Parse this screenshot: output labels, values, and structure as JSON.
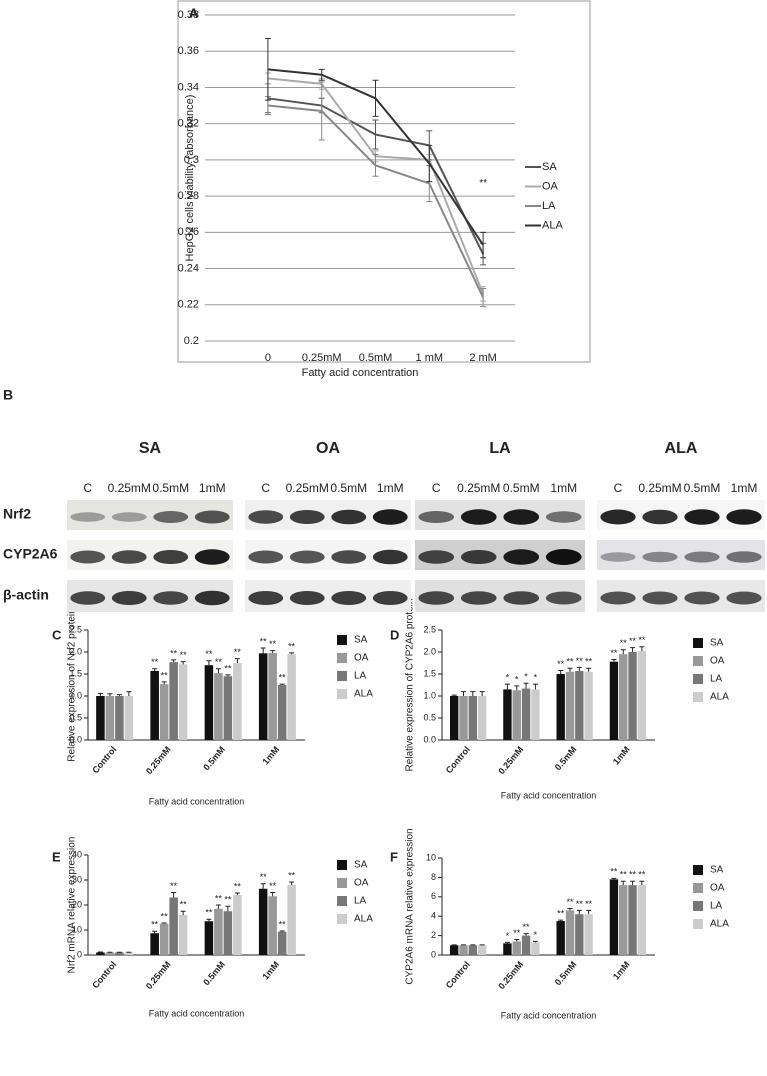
{
  "chart_data": [
    {
      "type": "line",
      "panel": "A",
      "ylabel": "HepG2 cells viability (absorbance)",
      "xlabel": "Fatty acid concentration",
      "categories": [
        "0",
        "0.25mM",
        "0.5mM",
        "1 mM",
        "2 mM"
      ],
      "ylim": [
        0.2,
        0.38
      ],
      "yticks": [
        0.2,
        0.22,
        0.24,
        0.26,
        0.28,
        0.3,
        0.32,
        0.34,
        0.36,
        0.38
      ],
      "grid": true,
      "series": [
        {
          "name": "SA",
          "color": "#555555",
          "values": [
            0.334,
            0.33,
            0.314,
            0.308,
            0.248
          ],
          "errors": [
            0.008,
            0.004,
            0.008,
            0.008,
            0.006
          ]
        },
        {
          "name": "OA",
          "color": "#aaaaaa",
          "values": [
            0.345,
            0.342,
            0.302,
            0.3,
            0.226
          ],
          "errors": [
            0.003,
            0.003,
            0.003,
            0.003,
            0.004
          ]
        },
        {
          "name": "LA",
          "color": "#888888",
          "values": [
            0.33,
            0.327,
            0.297,
            0.287,
            0.224
          ],
          "errors": [
            0.005,
            0.016,
            0.006,
            0.01,
            0.005
          ]
        },
        {
          "name": "ALA",
          "color": "#333333",
          "values": [
            0.35,
            0.347,
            0.334,
            0.298,
            0.253
          ],
          "errors": [
            0.017,
            0.003,
            0.01,
            0.01,
            0.007
          ]
        }
      ],
      "annotations": [
        {
          "text": "**",
          "x": 4,
          "y": 0.287
        }
      ]
    },
    {
      "type": "bar",
      "panel": "C",
      "ylabel": "Relative expression of Nrf2 protein",
      "xlabel": "Fatty acid concentration",
      "categories": [
        "Control",
        "0.25mM",
        "0.5mM",
        "1mM"
      ],
      "ylim": [
        0,
        2.5
      ],
      "yticks": [
        {
          "value": 0,
          "label": "0.0"
        },
        0.5,
        {
          "value": 1,
          "label": "1.0"
        },
        1.5,
        {
          "value": 2,
          "label": "2.0"
        },
        2.5
      ],
      "series": [
        {
          "name": "SA",
          "color": "#111111",
          "values": [
            1.0,
            1.57,
            1.7,
            1.97
          ],
          "errors": [
            0.06,
            0.05,
            0.1,
            0.12
          ],
          "significance": [
            null,
            "**",
            "**",
            "**"
          ]
        },
        {
          "name": "OA",
          "color": "#999999",
          "values": [
            1.0,
            1.27,
            1.52,
            1.98
          ],
          "errors": [
            0.05,
            0.05,
            0.1,
            0.05
          ],
          "significance": [
            null,
            "**",
            "**",
            "**"
          ]
        },
        {
          "name": "LA",
          "color": "#777777",
          "values": [
            1.0,
            1.77,
            1.45,
            1.25
          ],
          "errors": [
            0.03,
            0.05,
            0.03,
            0.02
          ],
          "significance": [
            null,
            "**",
            "**",
            "**"
          ]
        },
        {
          "name": "ALA",
          "color": "#cccccc",
          "values": [
            1.0,
            1.72,
            1.75,
            1.95
          ],
          "errors": [
            0.1,
            0.06,
            0.1,
            0.03
          ],
          "significance": [
            null,
            "**",
            "**",
            "**"
          ]
        }
      ]
    },
    {
      "type": "bar",
      "panel": "D",
      "ylabel": "Relative expression of CYP2A6 protein",
      "xlabel": "Fatty acid concentration",
      "categories": [
        "Control",
        "0.25mM",
        "0.5mM",
        "1mM"
      ],
      "ylim": [
        0,
        2.5
      ],
      "yticks": [
        {
          "value": 0,
          "label": "0.0"
        },
        0.5,
        {
          "value": 1,
          "label": "1.0"
        },
        1.5,
        {
          "value": 2,
          "label": "2.0"
        },
        2.5
      ],
      "series": [
        {
          "name": "SA",
          "color": "#111111",
          "values": [
            1.0,
            1.15,
            1.5,
            1.78
          ],
          "errors": [
            0.02,
            0.12,
            0.08,
            0.05
          ],
          "significance": [
            null,
            "*",
            "**",
            "**"
          ]
        },
        {
          "name": "OA",
          "color": "#999999",
          "values": [
            1.0,
            1.13,
            1.55,
            1.95
          ],
          "errors": [
            0.1,
            0.1,
            0.08,
            0.1
          ],
          "significance": [
            null,
            "*",
            "**",
            "**"
          ]
        },
        {
          "name": "LA",
          "color": "#777777",
          "values": [
            1.0,
            1.17,
            1.57,
            2.0
          ],
          "errors": [
            0.1,
            0.12,
            0.08,
            0.1
          ],
          "significance": [
            null,
            "*",
            "**",
            "**"
          ]
        },
        {
          "name": "ALA",
          "color": "#cccccc",
          "values": [
            1.0,
            1.15,
            1.55,
            2.02
          ],
          "errors": [
            0.1,
            0.12,
            0.08,
            0.1
          ],
          "significance": [
            null,
            "*",
            "**",
            "**"
          ]
        }
      ]
    },
    {
      "type": "bar",
      "panel": "E",
      "ylabel": "Nrf2 mRNA relative expression",
      "xlabel": "Fatty acid concentration",
      "categories": [
        "Control",
        "0.25mM",
        "0.5mM",
        "1mM"
      ],
      "ylim": [
        0,
        40
      ],
      "yticks": [
        0,
        10,
        20,
        30,
        40
      ],
      "series": [
        {
          "name": "SA",
          "color": "#111111",
          "values": [
            1,
            8.7,
            13.5,
            26.5
          ],
          "errors": [
            0.2,
            0.8,
            0.8,
            2
          ],
          "significance": [
            null,
            "**",
            "**",
            "**"
          ]
        },
        {
          "name": "OA",
          "color": "#999999",
          "values": [
            1,
            12.5,
            18.5,
            23.5
          ],
          "errors": [
            0.1,
            0.3,
            1.5,
            1.5
          ],
          "significance": [
            null,
            "**",
            "**",
            "**"
          ]
        },
        {
          "name": "LA",
          "color": "#777777",
          "values": [
            1,
            23,
            17.5,
            9.3
          ],
          "errors": [
            0.1,
            2,
            2,
            0.3
          ],
          "significance": [
            null,
            "**",
            "**",
            "**"
          ]
        },
        {
          "name": "ALA",
          "color": "#cccccc",
          "values": [
            1,
            16,
            24,
            28
          ],
          "errors": [
            0.1,
            1.5,
            0.8,
            1.2
          ],
          "significance": [
            null,
            "**",
            "**",
            "**"
          ]
        }
      ]
    },
    {
      "type": "bar",
      "panel": "F",
      "ylabel": "CYP2A6 mRNA relative expression",
      "xlabel": "Fatty acid concentration",
      "categories": [
        "Control",
        "0.25mM",
        "0.5mM",
        "1mM"
      ],
      "ylim": [
        0,
        10
      ],
      "yticks": [
        0,
        2,
        4,
        6,
        8,
        10
      ],
      "series": [
        {
          "name": "SA",
          "color": "#111111",
          "values": [
            1,
            1.2,
            3.5,
            7.8
          ],
          "errors": [
            0.05,
            0.1,
            0.1,
            0.1
          ],
          "significance": [
            null,
            "*",
            "**",
            "**"
          ]
        },
        {
          "name": "OA",
          "color": "#999999",
          "values": [
            1,
            1.4,
            4.6,
            7.2
          ],
          "errors": [
            0.05,
            0.2,
            0.2,
            0.4
          ],
          "significance": [
            null,
            "**",
            "**",
            "**"
          ]
        },
        {
          "name": "LA",
          "color": "#777777",
          "values": [
            1,
            2.0,
            4.2,
            7.2
          ],
          "errors": [
            0.05,
            0.2,
            0.4,
            0.4
          ],
          "significance": [
            null,
            "**",
            "**",
            "**"
          ]
        },
        {
          "name": "ALA",
          "color": "#cccccc",
          "values": [
            1,
            1.3,
            4.2,
            7.2
          ],
          "errors": [
            0.05,
            0.1,
            0.4,
            0.4
          ],
          "significance": [
            null,
            "*",
            "**",
            "**"
          ]
        }
      ]
    }
  ],
  "blot": {
    "panel": "B",
    "rows": [
      "Nrf2",
      "CYP2A6",
      "β-actin"
    ],
    "groups": [
      {
        "name": "SA",
        "lanes": [
          "C",
          "0.25mM",
          "0.5mM",
          "1mM"
        ]
      },
      {
        "name": "OA",
        "lanes": [
          "C",
          "0.25mM",
          "0.5mM",
          "1mM"
        ]
      },
      {
        "name": "LA",
        "lanes": [
          "C",
          "0.25mM",
          "0.5mM",
          "1mM"
        ]
      },
      {
        "name": "ALA",
        "lanes": [
          "C",
          "0.25mM",
          "0.5mM",
          "1mM"
        ]
      }
    ]
  }
}
